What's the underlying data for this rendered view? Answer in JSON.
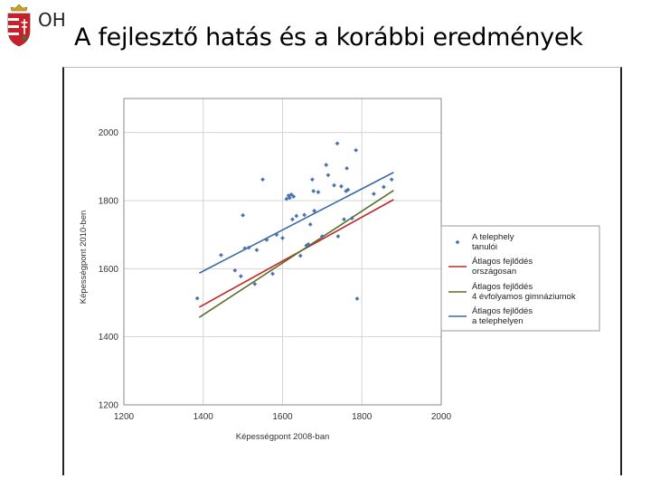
{
  "header": {
    "logo_text": "OH",
    "title": "A fejlesztő hatás és a korábbi eredmények"
  },
  "chart_data": {
    "type": "scatter",
    "title": "",
    "xlabel": "Képességpont 2008-ban",
    "ylabel": "Képességpont 2010-ben",
    "xlim": [
      1200,
      2000
    ],
    "ylim": [
      1200,
      2100
    ],
    "x_ticks": [
      "1200",
      "1400",
      "1600",
      "1800",
      "2000"
    ],
    "y_ticks": [
      "1200",
      "1400",
      "1600",
      "1800",
      "2000"
    ],
    "grid": true,
    "legend_position": "right",
    "series": [
      {
        "name": "A telephely tanulói",
        "kind": "points",
        "color": "#4a74b0",
        "points": [
          [
            1385,
            1513
          ],
          [
            1445,
            1640
          ],
          [
            1480,
            1595
          ],
          [
            1495,
            1578
          ],
          [
            1500,
            1757
          ],
          [
            1505,
            1660
          ],
          [
            1515,
            1662
          ],
          [
            1530,
            1555
          ],
          [
            1535,
            1655
          ],
          [
            1550,
            1862
          ],
          [
            1560,
            1685
          ],
          [
            1575,
            1585
          ],
          [
            1585,
            1700
          ],
          [
            1600,
            1690
          ],
          [
            1610,
            1805
          ],
          [
            1615,
            1815
          ],
          [
            1618,
            1808
          ],
          [
            1622,
            1818
          ],
          [
            1625,
            1745
          ],
          [
            1628,
            1812
          ],
          [
            1635,
            1755
          ],
          [
            1645,
            1638
          ],
          [
            1655,
            1758
          ],
          [
            1660,
            1668
          ],
          [
            1665,
            1672
          ],
          [
            1670,
            1730
          ],
          [
            1675,
            1862
          ],
          [
            1678,
            1828
          ],
          [
            1680,
            1770
          ],
          [
            1690,
            1825
          ],
          [
            1700,
            1695
          ],
          [
            1710,
            1905
          ],
          [
            1715,
            1875
          ],
          [
            1730,
            1845
          ],
          [
            1738,
            1968
          ],
          [
            1740,
            1695
          ],
          [
            1748,
            1842
          ],
          [
            1755,
            1745
          ],
          [
            1760,
            1828
          ],
          [
            1762,
            1895
          ],
          [
            1765,
            1832
          ],
          [
            1775,
            1748
          ],
          [
            1785,
            1948
          ],
          [
            1788,
            1512
          ],
          [
            1830,
            1820
          ],
          [
            1855,
            1840
          ],
          [
            1875,
            1862
          ]
        ]
      },
      {
        "name": "Átlagos fejlődés országosan",
        "kind": "line",
        "color": "#c0282a",
        "points": [
          [
            1390,
            1487
          ],
          [
            1880,
            1803
          ]
        ]
      },
      {
        "name": "Átlagos fejlődés 4 évfolyamos gimnáziumok",
        "kind": "line",
        "color": "#5a6e28",
        "points": [
          [
            1390,
            1457
          ],
          [
            1880,
            1830
          ]
        ]
      },
      {
        "name": "Átlagos fejlődés a telephelyen",
        "kind": "line",
        "color": "#3a6aa8",
        "points": [
          [
            1390,
            1587
          ],
          [
            1880,
            1883
          ]
        ]
      }
    ],
    "legend": [
      {
        "lines": [
          "A telephely",
          "tanulói"
        ]
      },
      {
        "lines": [
          "Átlagos fejlődés",
          "országosan"
        ]
      },
      {
        "lines": [
          "Átlagos fejlődés",
          "4 évfolyamos gimnáziumok"
        ]
      },
      {
        "lines": [
          "Átlagos fejlődés",
          "a telephelyen"
        ]
      }
    ]
  }
}
